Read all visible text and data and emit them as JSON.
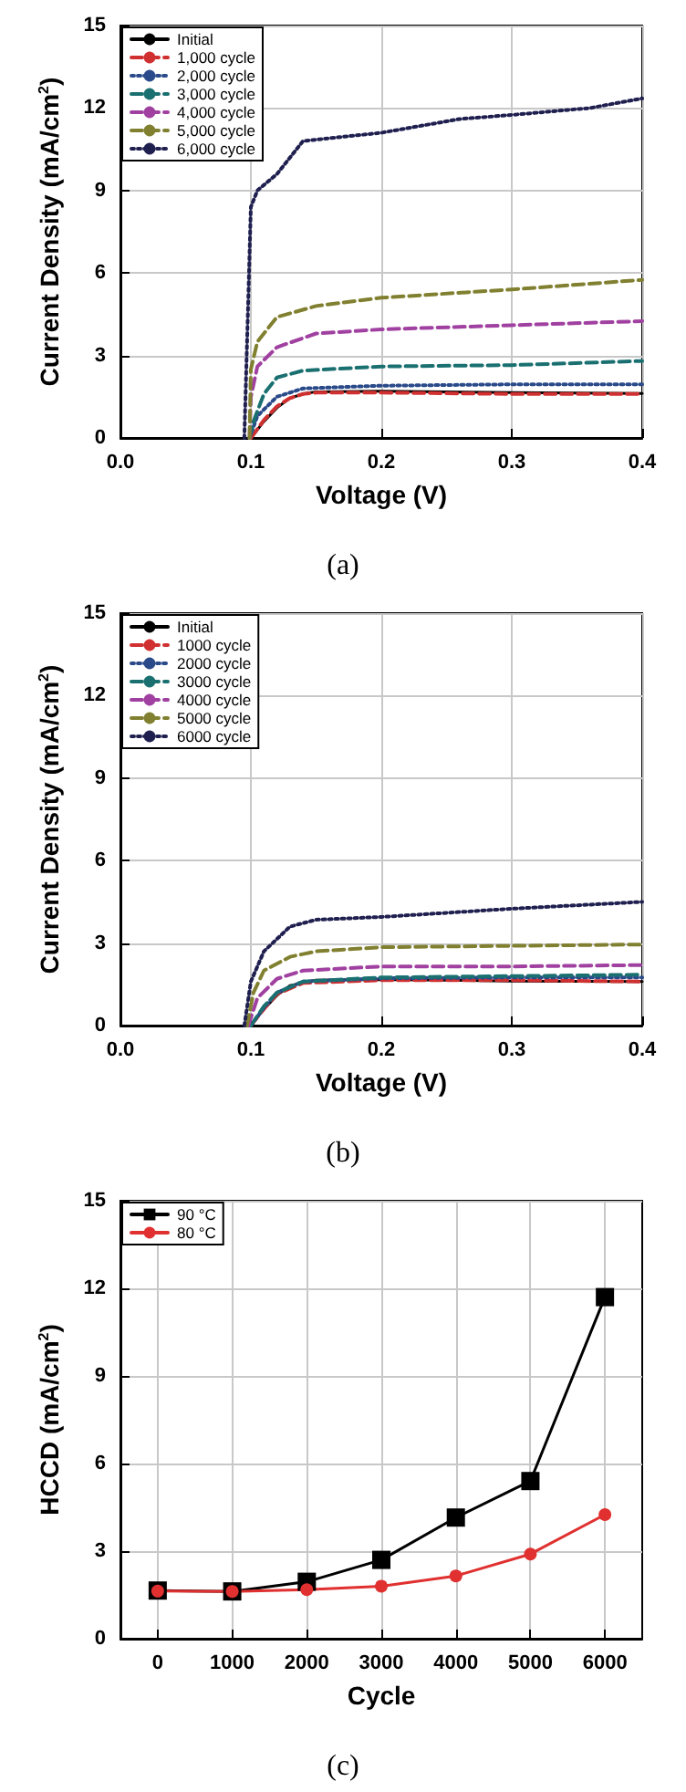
{
  "chart_data": [
    {
      "type": "line",
      "xlabel": "Voltage (V)",
      "ylabel": "Current Density (mA/cm$^{2}$)",
      "annotations": [
        "(a)"
      ],
      "xlim": [
        0,
        0.4
      ],
      "ylim": [
        0,
        15
      ],
      "xticks": [
        {
          "value": 0,
          "label": "0.0"
        },
        0.1,
        0.2,
        0.3,
        0.4
      ],
      "yticks": [
        0,
        3,
        6,
        9,
        12,
        15
      ],
      "grid": true,
      "legend": "top left",
      "marker": "none",
      "series": [
        {
          "name": "Initial",
          "color": "#000000",
          "line_style": "solid",
          "x": [
            0.1,
            0.11,
            0.12,
            0.13,
            0.14,
            0.15,
            0.2,
            0.3,
            0.4
          ],
          "values": [
            0,
            0.6,
            1.1,
            1.45,
            1.6,
            1.68,
            1.7,
            1.65,
            1.62
          ]
        },
        {
          "name": "1,000 cycle",
          "color": "#d03030",
          "line_style": "dashed",
          "x": [
            0.1,
            0.11,
            0.12,
            0.13,
            0.14,
            0.15,
            0.2,
            0.3,
            0.4
          ],
          "values": [
            0,
            0.65,
            1.15,
            1.45,
            1.6,
            1.65,
            1.65,
            1.6,
            1.6
          ]
        },
        {
          "name": "2,000 cycle",
          "color": "#2a4a8a",
          "line_style": "dotted",
          "x": [
            0.099,
            0.105,
            0.12,
            0.14,
            0.2,
            0.3,
            0.4
          ],
          "values": [
            0,
            0.8,
            1.5,
            1.8,
            1.9,
            1.95,
            1.95
          ]
        },
        {
          "name": "3,000 cycle",
          "color": "#1a7070",
          "line_style": "dashed",
          "x": [
            0.099,
            0.102,
            0.11,
            0.12,
            0.14,
            0.2,
            0.3,
            0.4
          ],
          "values": [
            0,
            0.6,
            1.6,
            2.2,
            2.45,
            2.6,
            2.65,
            2.8
          ]
        },
        {
          "name": "4,000 cycle",
          "color": "#a040a0",
          "line_style": "dashed",
          "x": [
            0.099,
            0.1,
            0.105,
            0.12,
            0.15,
            0.2,
            0.3,
            0.4
          ],
          "values": [
            0,
            1.5,
            2.6,
            3.3,
            3.8,
            3.95,
            4.1,
            4.25
          ]
        },
        {
          "name": "5,000 cycle",
          "color": "#808030",
          "line_style": "dashed",
          "x": [
            0.099,
            0.1,
            0.105,
            0.12,
            0.15,
            0.2,
            0.3,
            0.4
          ],
          "values": [
            0,
            2.5,
            3.5,
            4.4,
            4.8,
            5.1,
            5.4,
            5.75
          ]
        },
        {
          "name": "6,000 cycle",
          "color": "#202050",
          "line_style": "dotted",
          "x": [
            0.095,
            0.098,
            0.1,
            0.105,
            0.12,
            0.14,
            0.2,
            0.26,
            0.3,
            0.36,
            0.4
          ],
          "values": [
            0,
            5,
            8.4,
            9,
            9.6,
            10.8,
            11.1,
            11.6,
            11.75,
            12,
            12.35
          ]
        }
      ]
    },
    {
      "type": "line",
      "xlabel": "Voltage (V)",
      "ylabel": "Current Density (mA/cm$^{2}$)",
      "annotations": [
        "(b)"
      ],
      "xlim": [
        0,
        0.4
      ],
      "ylim": [
        0,
        15
      ],
      "xticks": [
        {
          "value": 0,
          "label": "0.0"
        },
        0.1,
        0.2,
        0.3,
        0.4
      ],
      "yticks": [
        0,
        3,
        6,
        9,
        12,
        15
      ],
      "grid": true,
      "legend": "top left",
      "marker": "none",
      "series": [
        {
          "name": "Initial",
          "color": "#000000",
          "line_style": "solid",
          "x": [
            0.1,
            0.11,
            0.12,
            0.13,
            0.15,
            0.2,
            0.3,
            0.4
          ],
          "values": [
            0,
            0.6,
            1.1,
            1.45,
            1.65,
            1.68,
            1.62,
            1.6
          ]
        },
        {
          "name": "1000 cycle",
          "color": "#d03030",
          "line_style": "dashed",
          "x": [
            0.1,
            0.11,
            0.12,
            0.14,
            0.2,
            0.3,
            0.4
          ],
          "values": [
            0,
            0.6,
            1.15,
            1.55,
            1.65,
            1.65,
            1.6
          ]
        },
        {
          "name": "2000 cycle",
          "color": "#2a4a8a",
          "line_style": "dotted",
          "x": [
            0.1,
            0.11,
            0.12,
            0.14,
            0.2,
            0.3,
            0.4
          ],
          "values": [
            0,
            0.65,
            1.2,
            1.6,
            1.72,
            1.75,
            1.75
          ]
        },
        {
          "name": "3000 cycle",
          "color": "#1a7070",
          "line_style": "dashed",
          "x": [
            0.1,
            0.11,
            0.12,
            0.14,
            0.2,
            0.3,
            0.4
          ],
          "values": [
            0,
            0.7,
            1.2,
            1.6,
            1.75,
            1.8,
            1.85
          ]
        },
        {
          "name": "4000 cycle",
          "color": "#a040a0",
          "line_style": "dashed",
          "x": [
            0.098,
            0.105,
            0.12,
            0.14,
            0.2,
            0.3,
            0.4
          ],
          "values": [
            0,
            1,
            1.7,
            2,
            2.15,
            2.15,
            2.2
          ]
        },
        {
          "name": "5000 cycle",
          "color": "#808030",
          "line_style": "dashed",
          "x": [
            0.097,
            0.102,
            0.11,
            0.13,
            0.15,
            0.2,
            0.3,
            0.4
          ],
          "values": [
            0,
            1.2,
            2,
            2.5,
            2.7,
            2.85,
            2.9,
            2.95
          ]
        },
        {
          "name": "6000 cycle",
          "color": "#202050",
          "line_style": "dotted",
          "x": [
            0.095,
            0.1,
            0.11,
            0.13,
            0.15,
            0.2,
            0.3,
            0.4
          ],
          "values": [
            0,
            1.6,
            2.7,
            3.6,
            3.85,
            3.95,
            4.25,
            4.5
          ]
        }
      ]
    },
    {
      "type": "line",
      "xlabel": "Cycle",
      "ylabel": "HCCD (mA/cm$^{2}$)",
      "annotations": [
        "(c)"
      ],
      "xlim": [
        -500,
        6500
      ],
      "ylim": [
        0,
        15
      ],
      "xticks": [
        0,
        1000,
        2000,
        3000,
        4000,
        5000,
        6000
      ],
      "yticks": [
        0,
        3,
        6,
        9,
        12,
        15
      ],
      "grid": true,
      "legend": "top left",
      "line_style": "solid",
      "series": [
        {
          "name": "90 °C",
          "color": "#000000",
          "marker": "square",
          "x": [
            0,
            1000,
            2000,
            3000,
            4000,
            5000,
            6000
          ],
          "values": [
            1.65,
            1.62,
            1.95,
            2.7,
            4.15,
            5.4,
            11.7
          ]
        },
        {
          "name": "80 °C",
          "color": "#e03030",
          "marker": "circle",
          "x": [
            0,
            1000,
            2000,
            3000,
            4000,
            5000,
            6000
          ],
          "values": [
            1.63,
            1.62,
            1.68,
            1.8,
            2.15,
            2.9,
            4.25
          ]
        }
      ]
    }
  ]
}
